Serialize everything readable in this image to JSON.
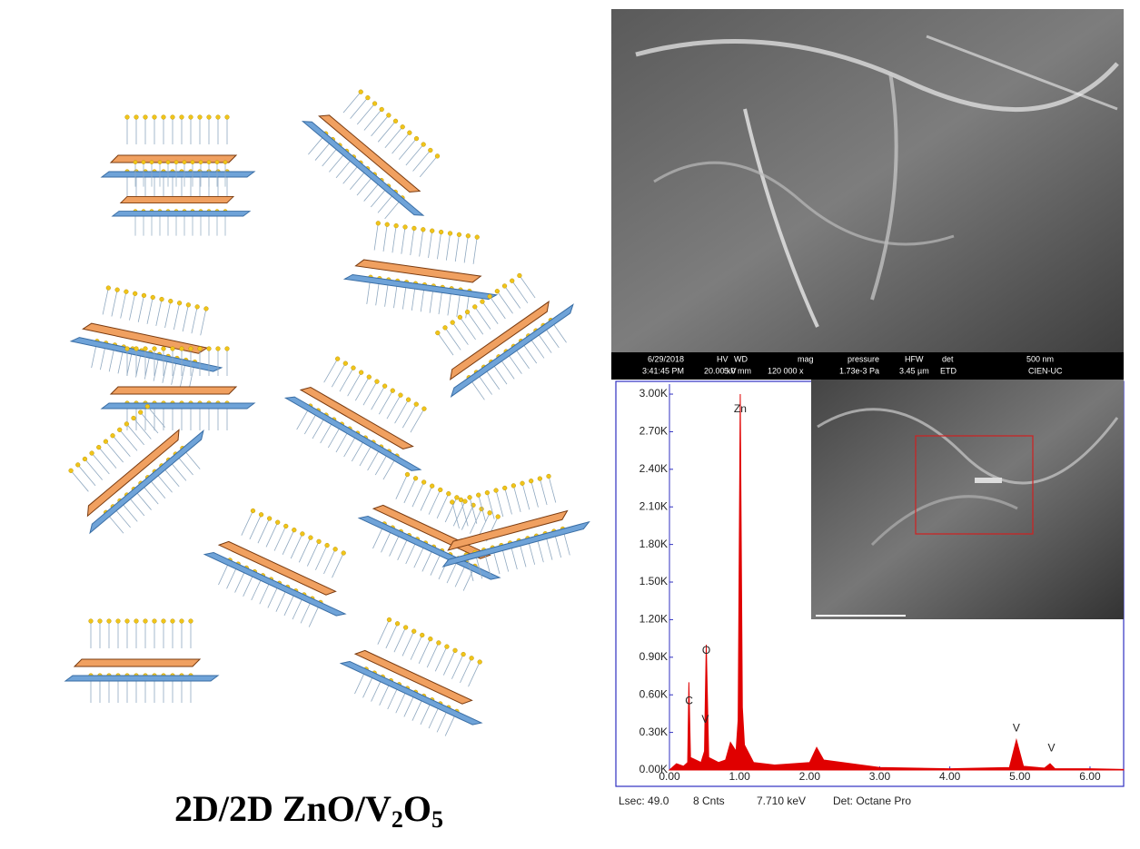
{
  "caption": {
    "main": "2D/2D ZnO/V",
    "sub_v": "2",
    "oxygen": "O",
    "sub_o": "5"
  },
  "sem_bar": {
    "date": "6/29/2018",
    "time": "3:41:45 PM",
    "hv_label": "HV",
    "hv": "20.00 kV",
    "wd_label": "WD",
    "wd": "5.0 mm",
    "mag_label": "mag",
    "mag": "120 000 x",
    "pressure_label": "pressure",
    "pressure": "1.73e-3 Pa",
    "hfw_label": "HFW",
    "hfw": "3.45 µm",
    "det_label": "det",
    "det": "ETD",
    "scale": "500 nm",
    "lab": "CIEN-UC"
  },
  "chart_data": {
    "type": "area",
    "color": "#e00000",
    "x": [
      0,
      0.1,
      0.2,
      0.26,
      0.277,
      0.3,
      0.45,
      0.5,
      0.51,
      0.525,
      0.56,
      0.7,
      0.8,
      0.87,
      0.95,
      0.98,
      1.01,
      1.04,
      1.07,
      1.2,
      1.5,
      2.0,
      2.1,
      2.2,
      3.0,
      4.0,
      4.85,
      4.95,
      5.05,
      5.35,
      5.43,
      5.5,
      6.0,
      6.48
    ],
    "values": [
      0,
      50,
      30,
      60,
      700,
      100,
      60,
      150,
      520,
      1000,
      100,
      60,
      80,
      220,
      150,
      400,
      3000,
      500,
      200,
      60,
      40,
      60,
      180,
      80,
      20,
      10,
      20,
      240,
      30,
      15,
      50,
      10,
      10,
      5
    ],
    "xlim": [
      0,
      6.48
    ],
    "ylim": [
      0,
      3080
    ],
    "xticks": [
      {
        "value": 0,
        "label": "0.00"
      },
      {
        "value": 1,
        "label": "1.00"
      },
      {
        "value": 2,
        "label": "2.00"
      },
      {
        "value": 3,
        "label": "3.00"
      },
      {
        "value": 4,
        "label": "4.00"
      },
      {
        "value": 5,
        "label": "5.00"
      },
      {
        "value": 6,
        "label": "6.00"
      }
    ],
    "yticks": [
      {
        "value": 0,
        "label": "0.00K"
      },
      {
        "value": 300,
        "label": "0.30K"
      },
      {
        "value": 600,
        "label": "0.60K"
      },
      {
        "value": 900,
        "label": "0.90K"
      },
      {
        "value": 1200,
        "label": "1.20K"
      },
      {
        "value": 1500,
        "label": "1.50K"
      },
      {
        "value": 1800,
        "label": "1.80K"
      },
      {
        "value": 2100,
        "label": "2.10K"
      },
      {
        "value": 2400,
        "label": "2.40K"
      },
      {
        "value": 2700,
        "label": "2.70K"
      },
      {
        "value": 3000,
        "label": "3.00K"
      }
    ],
    "peak_labels": [
      {
        "label": "Zn",
        "x": 1.01,
        "y": 2880
      },
      {
        "label": "O",
        "x": 0.525,
        "y": 950
      },
      {
        "label": "C",
        "x": 0.28,
        "y": 550
      },
      {
        "label": "V",
        "x": 0.51,
        "y": 400
      },
      {
        "label": "V",
        "x": 4.95,
        "y": 330
      },
      {
        "label": "V",
        "x": 5.45,
        "y": 170
      }
    ],
    "footer": [
      "Lsec: 49.0",
      "8 Cnts",
      "7.710 keV",
      "Det: Octane Pro"
    ]
  }
}
